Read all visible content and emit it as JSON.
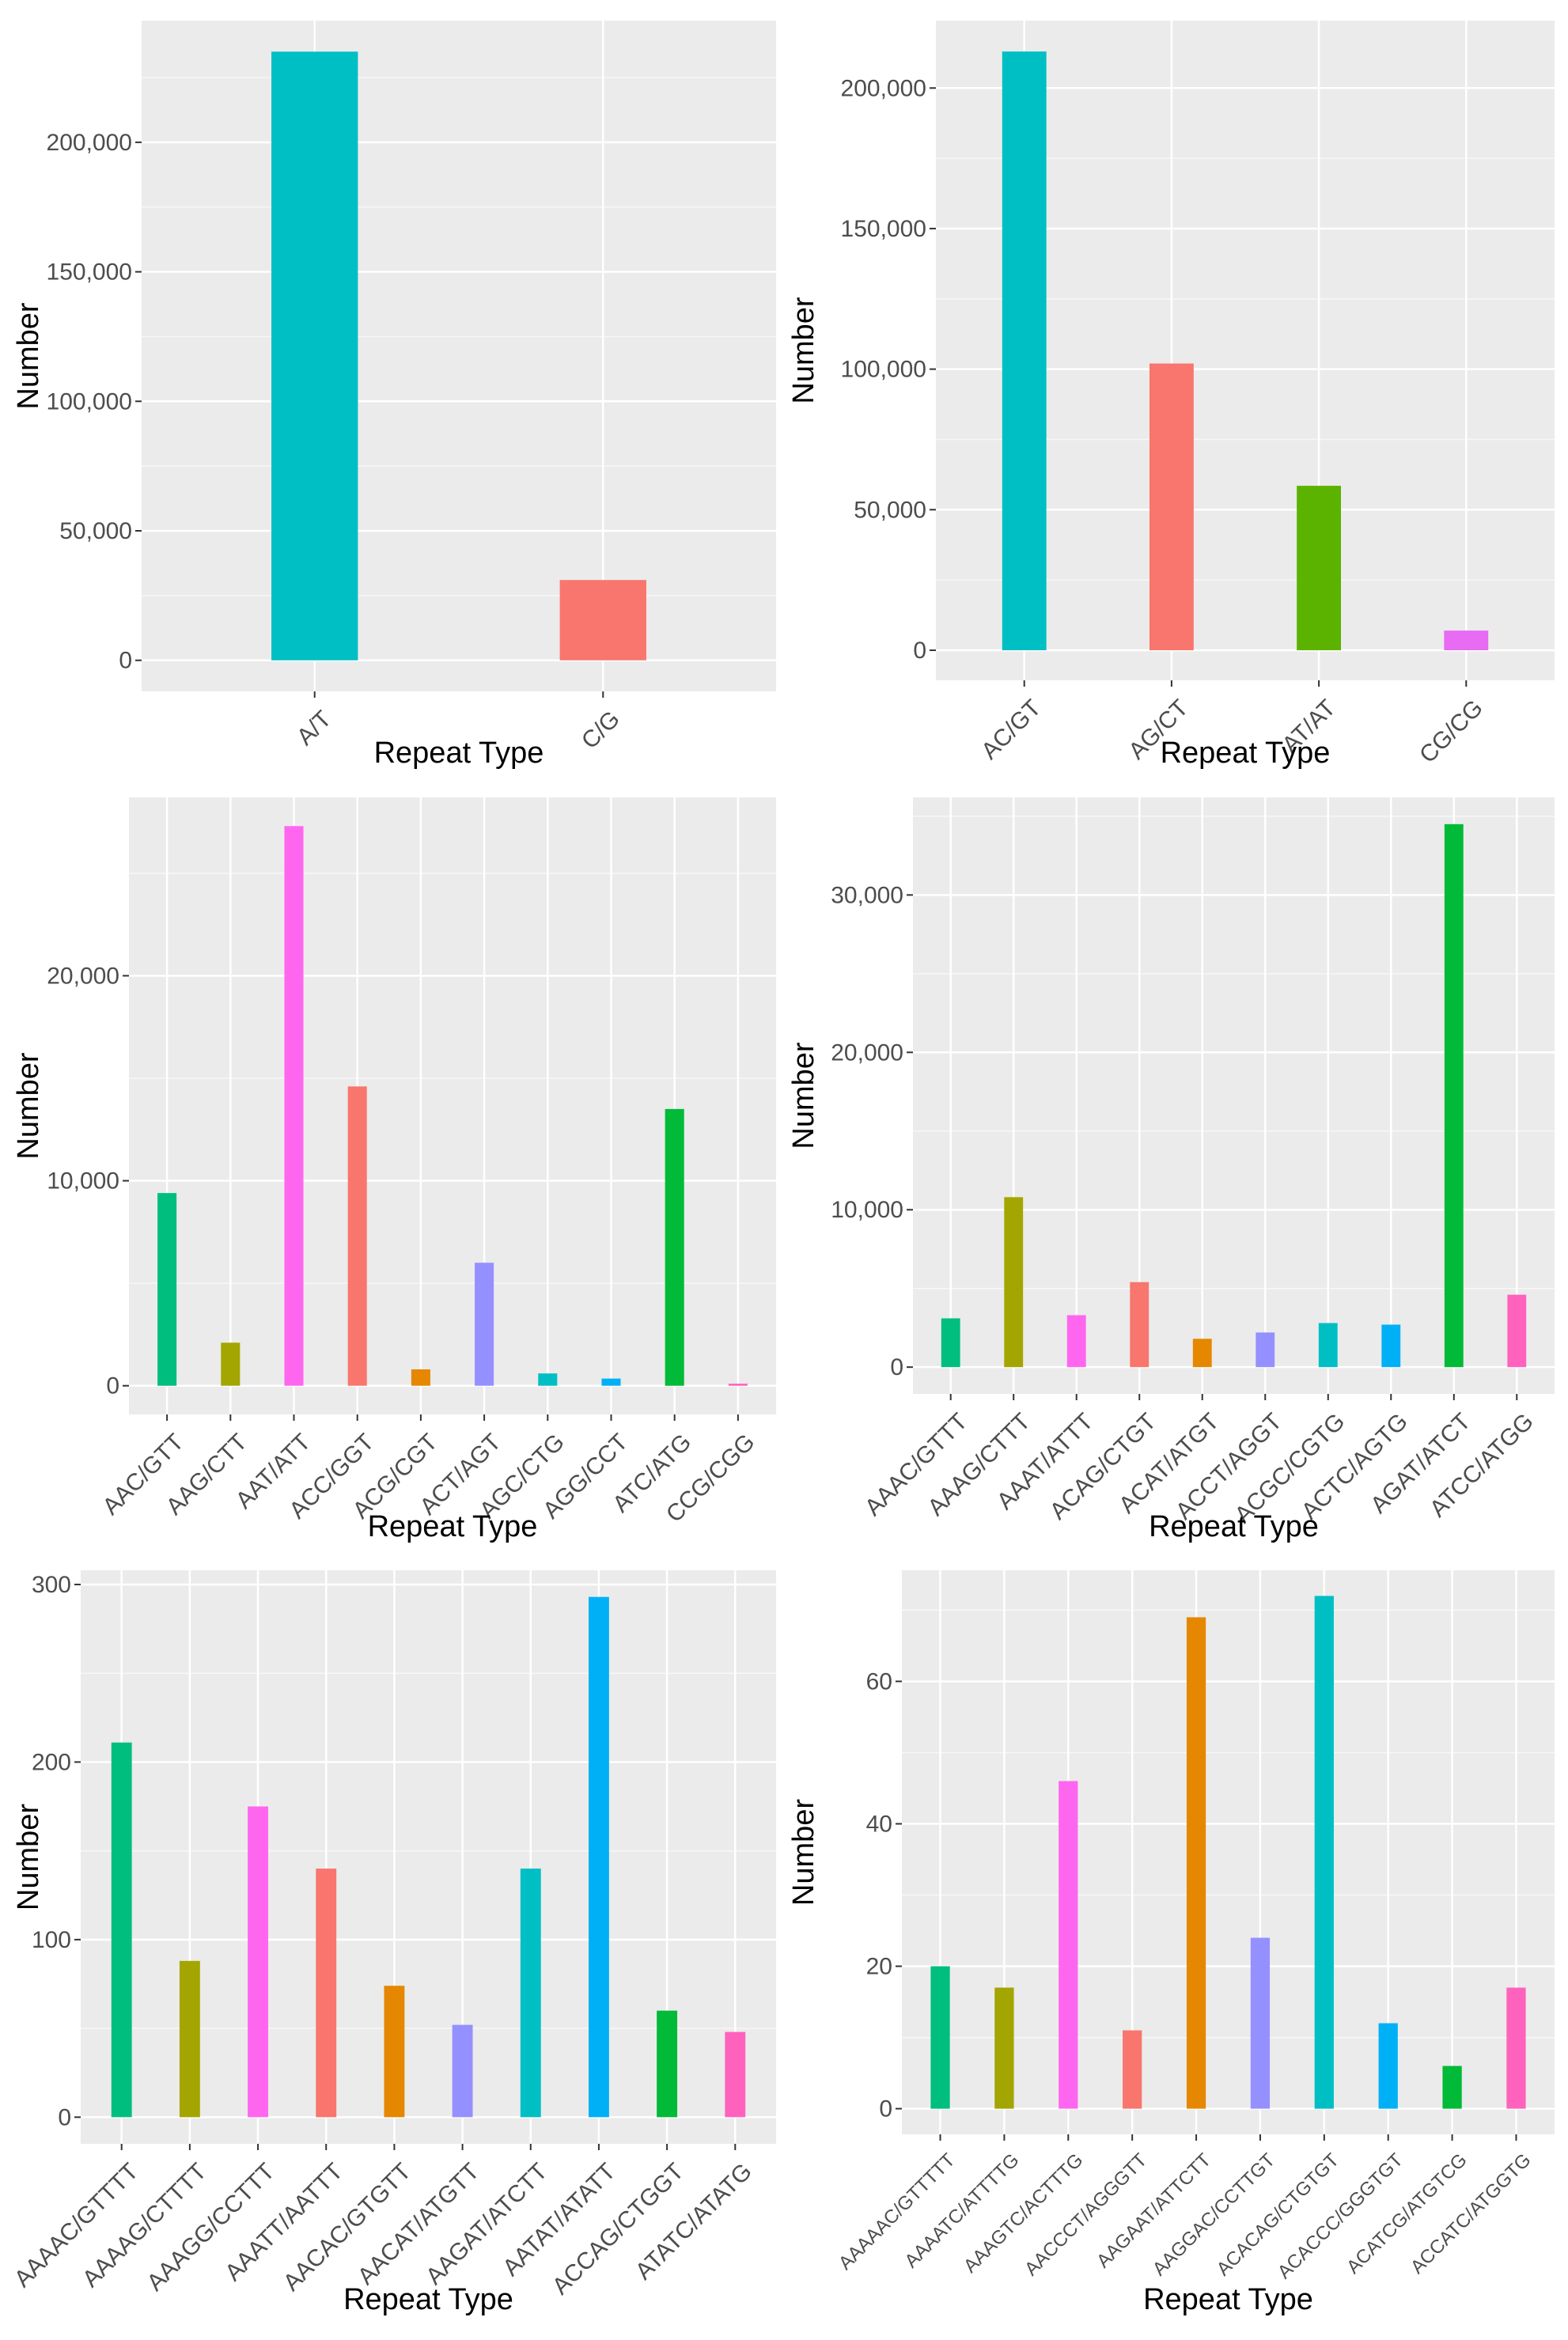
{
  "chart_data": [
    {
      "type": "bar",
      "xlabel": "Repeat Type",
      "ylabel": "Number",
      "categories": [
        "A/T",
        "C/G"
      ],
      "values": [
        235000,
        31000
      ],
      "colors": [
        "#00BFC4",
        "#F8766D"
      ],
      "yticks": [
        0,
        50000,
        100000,
        150000,
        200000
      ],
      "ytick_labels": [
        "0",
        "50,000",
        "100,000",
        "150,000",
        "200,000"
      ],
      "ylim": [
        -12000,
        247000
      ]
    },
    {
      "type": "bar",
      "xlabel": "Repeat Type",
      "ylabel": "Number",
      "categories": [
        "AC/GT",
        "AG/CT",
        "AT/AT",
        "CG/CG"
      ],
      "values": [
        213000,
        102000,
        58500,
        7000
      ],
      "colors": [
        "#00BFC4",
        "#F8766D",
        "#5BB300",
        "#E76BF3"
      ],
      "yticks": [
        0,
        50000,
        100000,
        150000,
        200000
      ],
      "ytick_labels": [
        "0",
        "50,000",
        "100,000",
        "150,000",
        "200,000"
      ],
      "ylim": [
        -10700,
        224000
      ]
    },
    {
      "type": "bar",
      "xlabel": "Repeat Type",
      "ylabel": "Number",
      "categories": [
        "AAC/GTT",
        "AAG/CTT",
        "AAT/ATT",
        "ACC/GGT",
        "ACG/CGT",
        "ACT/AGT",
        "AGC/CTG",
        "AGG/CCT",
        "ATC/ATG",
        "CCG/CGG"
      ],
      "values": [
        9400,
        2100,
        27300,
        14600,
        800,
        6000,
        600,
        350,
        13500,
        100
      ],
      "colors": [
        "#00BE7D",
        "#A3A500",
        "#FF66F0",
        "#F8766D",
        "#E58700",
        "#9590FF",
        "#00BFC4",
        "#00B0F6",
        "#00BA38",
        "#FF62BC"
      ],
      "yticks": [
        0,
        10000,
        20000
      ],
      "ytick_labels": [
        "0",
        "10,000",
        "20,000"
      ],
      "ylim": [
        -1400,
        28700
      ]
    },
    {
      "type": "bar",
      "xlabel": "Repeat Type",
      "ylabel": "Number",
      "categories": [
        "AAAC/GTTT",
        "AAAG/CTTT",
        "AAAT/ATTT",
        "ACAG/CTGT",
        "ACAT/ATGT",
        "ACCT/AGGT",
        "ACGC/CGTG",
        "ACTC/AGTG",
        "AGAT/ATCT",
        "ATCC/ATGG"
      ],
      "values": [
        3100,
        10800,
        3300,
        5400,
        1800,
        2200,
        2800,
        2700,
        34500,
        4600
      ],
      "colors": [
        "#00BE7D",
        "#A3A500",
        "#FF66F0",
        "#F8766D",
        "#E58700",
        "#9590FF",
        "#00BFC4",
        "#00B0F6",
        "#00BA38",
        "#FF62BC"
      ],
      "yticks": [
        0,
        10000,
        20000,
        30000
      ],
      "ytick_labels": [
        "0",
        "10,000",
        "20,000",
        "30,000"
      ],
      "ylim": [
        -1700,
        36200
      ]
    },
    {
      "type": "bar",
      "xlabel": "Repeat Type",
      "ylabel": "Number",
      "categories": [
        "AAAAC/GTTTT",
        "AAAAG/CTTTT",
        "AAAGG/CCTTT",
        "AAATT/AATTT",
        "AACAC/GTGTT",
        "AACAT/ATGTT",
        "AAGAT/ATCTT",
        "AATAT/ATATT",
        "ACCAG/CTGGT",
        "ATATC/ATATG"
      ],
      "values": [
        211,
        88,
        175,
        140,
        74,
        52,
        140,
        293,
        60,
        48
      ],
      "colors": [
        "#00BE7D",
        "#A3A500",
        "#FF66F0",
        "#F8766D",
        "#E58700",
        "#9590FF",
        "#00BFC4",
        "#00B0F6",
        "#00BA38",
        "#FF62BC"
      ],
      "yticks": [
        0,
        100,
        200,
        300
      ],
      "ytick_labels": [
        "0",
        "100",
        "200",
        "300"
      ],
      "ylim": [
        -15,
        308
      ]
    },
    {
      "type": "bar",
      "xlabel": "Repeat Type",
      "ylabel": "Number",
      "categories": [
        "AAAAAC/GTTTTT",
        "AAAATC/ATTTTG",
        "AAAGTC/ACTTTG",
        "AACCCT/AGGGTT",
        "AAGAAT/ATTCTT",
        "AAGGAC/CCTTGT",
        "ACACAG/CTGTGT",
        "ACACCC/GGGTGT",
        "ACATCG/ATGTCG",
        "ACCATC/ATGGTG"
      ],
      "values": [
        20,
        17,
        46,
        11,
        69,
        24,
        72,
        12,
        6,
        17
      ],
      "colors": [
        "#00BE7D",
        "#A3A500",
        "#FF66F0",
        "#F8766D",
        "#E58700",
        "#9590FF",
        "#00BFC4",
        "#00B0F6",
        "#00BA38",
        "#FF62BC"
      ],
      "yticks": [
        0,
        20,
        40,
        60
      ],
      "ytick_labels": [
        "0",
        "20",
        "40",
        "60"
      ],
      "ylim": [
        -3.6,
        75.6
      ]
    }
  ]
}
